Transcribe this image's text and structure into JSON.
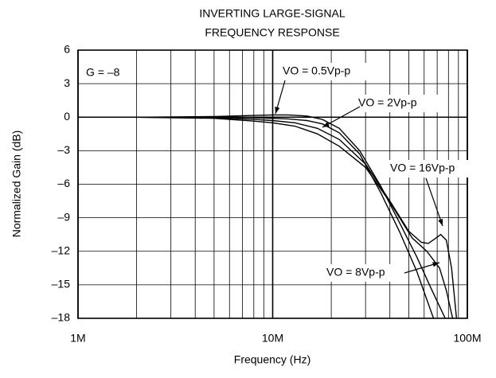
{
  "chart_data": {
    "type": "line",
    "title": [
      "INVERTING LARGE-SIGNAL",
      "FREQUENCY RESPONSE"
    ],
    "xlabel": "Frequency (Hz)",
    "ylabel": "Normalized Gain (dB)",
    "annotation": "G = –8",
    "xscale": "log",
    "grid": true,
    "xlim": [
      1000000,
      100000000
    ],
    "ylim": [
      -18,
      6
    ],
    "xticks": [
      {
        "value": 1000000,
        "label": "1M"
      },
      {
        "value": 10000000,
        "label": "10M"
      },
      {
        "value": 100000000,
        "label": "100M"
      }
    ],
    "xminorticks": [
      2000000,
      3000000,
      4000000,
      5000000,
      6000000,
      7000000,
      8000000,
      9000000,
      20000000,
      30000000,
      40000000,
      50000000,
      60000000,
      70000000,
      80000000,
      90000000
    ],
    "yticks": [
      {
        "value": -18,
        "label": "–18"
      },
      {
        "value": -15,
        "label": "–15"
      },
      {
        "value": -12,
        "label": "–12"
      },
      {
        "value": -9,
        "label": "–9"
      },
      {
        "value": -6,
        "label": "–6"
      },
      {
        "value": -3,
        "label": "–3"
      },
      0,
      3,
      6
    ],
    "series": [
      {
        "name": "VO = 0.5Vp-p",
        "color": "#000000",
        "x": [
          2000000,
          5000000,
          8000000,
          10000000,
          12000000,
          15000000,
          18000000,
          22000000,
          28000000,
          36000000,
          45000000,
          55000000,
          65000000,
          77000000
        ],
        "values": [
          0,
          0.05,
          0.15,
          0.2,
          0.2,
          0.1,
          -0.2,
          -1,
          -3,
          -6.2,
          -9.5,
          -12.5,
          -15.3,
          -18
        ]
      },
      {
        "name": "VO = 2Vp-p",
        "color": "#000000",
        "x": [
          2000000,
          5000000,
          8000000,
          10000000,
          12000000,
          15000000,
          18000000,
          22000000,
          28000000,
          36000000,
          45000000,
          55000000,
          67000000
        ],
        "values": [
          0,
          0,
          -0.05,
          -0.1,
          -0.15,
          -0.3,
          -0.6,
          -1.4,
          -3.3,
          -6.8,
          -10.3,
          -13.8,
          -18
        ]
      },
      {
        "name": "VO = 16Vp-p",
        "color": "#000000",
        "x": [
          2000000,
          5000000,
          8000000,
          10000000,
          13000000,
          17000000,
          22000000,
          30000000,
          40000000,
          50000000,
          58000000,
          63000000,
          68000000,
          73000000,
          78000000,
          83000000,
          88000000
        ],
        "values": [
          0,
          -0.05,
          -0.2,
          -0.3,
          -0.5,
          -1,
          -2,
          -4.2,
          -7.5,
          -10.2,
          -11.2,
          -11.3,
          -10.9,
          -10.5,
          -11,
          -13.5,
          -18
        ]
      },
      {
        "name": "VO = 8Vp-p",
        "color": "#000000",
        "x": [
          2000000,
          5000000,
          8000000,
          10000000,
          13000000,
          17000000,
          22000000,
          30000000,
          40000000,
          52000000,
          62000000,
          72000000,
          78000000,
          84000000
        ],
        "values": [
          0,
          -0.1,
          -0.35,
          -0.5,
          -0.8,
          -1.5,
          -2.6,
          -4.5,
          -7.6,
          -10.8,
          -12,
          -13.5,
          -15.5,
          -18
        ]
      }
    ]
  }
}
